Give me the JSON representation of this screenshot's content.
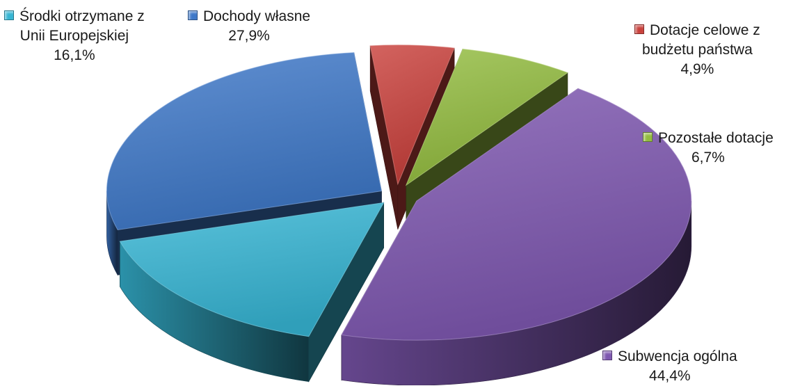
{
  "chart_data": {
    "type": "pie",
    "title": "",
    "slices": [
      {
        "name_lines": [
          "Subwencja ogólna"
        ],
        "value": 44.4,
        "value_label": "44,4%",
        "color": "#7E57B0"
      },
      {
        "name_lines": [
          "Środki otrzymane z",
          "Unii Europejskiej"
        ],
        "value": 16.1,
        "value_label": "16,1%",
        "color": "#36B5D3"
      },
      {
        "name_lines": [
          "Dochody własne"
        ],
        "value": 27.9,
        "value_label": "27,9%",
        "color": "#3E78C8"
      },
      {
        "name_lines": [
          "Dotacje celowe z",
          "budżetu państwa"
        ],
        "value": 4.9,
        "value_label": "4,9%",
        "color": "#C9413C"
      },
      {
        "name_lines": [
          "Pozostałe dotacje"
        ],
        "value": 6.7,
        "value_label": "6,7%",
        "color": "#93BC3F"
      }
    ]
  }
}
